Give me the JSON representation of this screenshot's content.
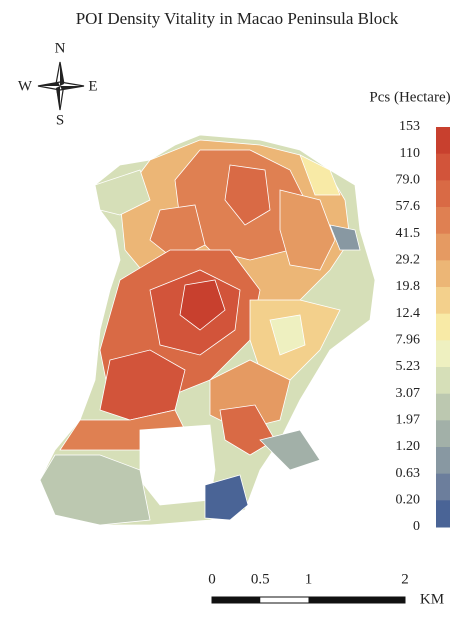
{
  "title": "POI Density Vitality in Macao Peninsula Block",
  "compass": {
    "north": "N",
    "south": "S",
    "west": "W",
    "east": "E"
  },
  "legend": {
    "title": "Pcs (Hectare)",
    "labels": [
      "153",
      "110",
      "79.0",
      "57.6",
      "41.5",
      "29.2",
      "19.8",
      "12.4",
      "7.96",
      "5.23",
      "3.07",
      "1.97",
      "1.20",
      "0.63",
      "0.20",
      "0"
    ],
    "colors": [
      "#c8402e",
      "#d2543a",
      "#d96a45",
      "#df8052",
      "#e59a62",
      "#ecb676",
      "#f3d08c",
      "#f8eaa6",
      "#eef0c0",
      "#d6dfb8",
      "#bcc8b0",
      "#a2b0a8",
      "#8898a2",
      "#6c7e9c",
      "#4a6496"
    ]
  },
  "scale_bar": {
    "labels": [
      "0",
      "0.5",
      "1",
      "2"
    ],
    "unit": "KM"
  }
}
